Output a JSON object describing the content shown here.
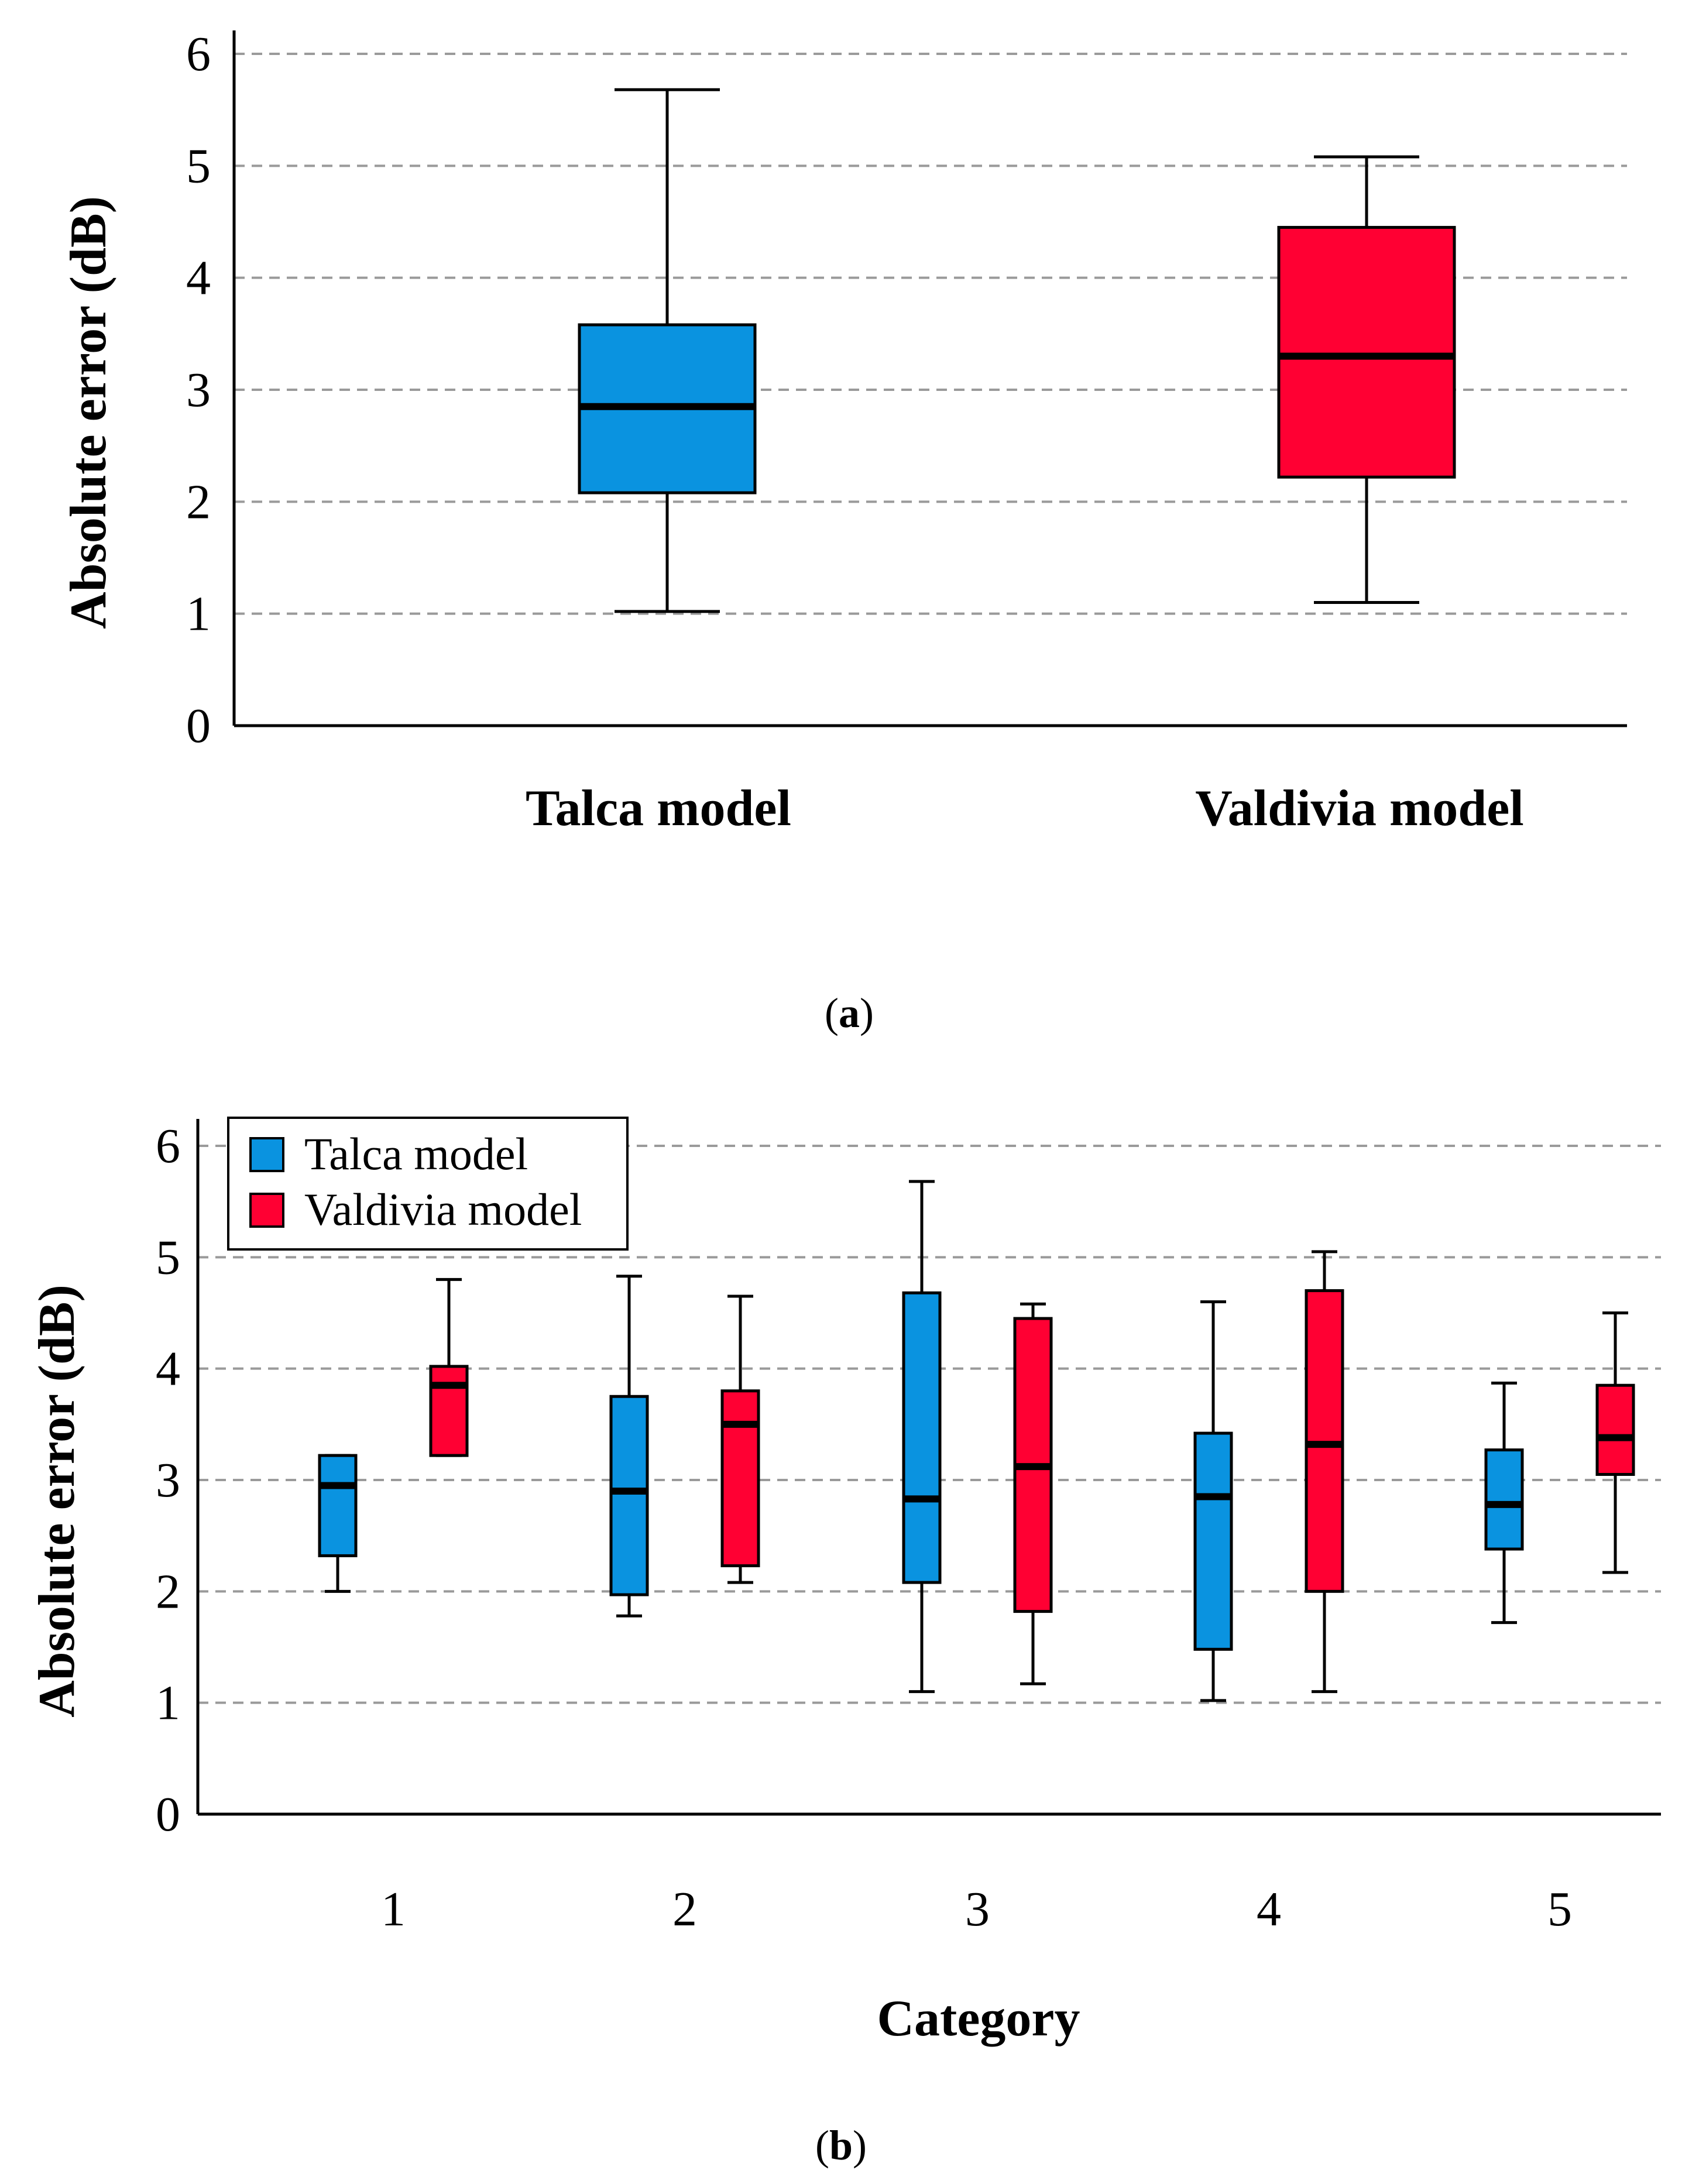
{
  "chart_data": [
    {
      "type": "box",
      "panel": "a",
      "caption": "(a)",
      "caption_letter": "a",
      "ylabel": "Absolute error (dB)",
      "xlabel": "",
      "ylim": [
        0,
        6
      ],
      "yticks": [
        0,
        1,
        2,
        3,
        4,
        5,
        6
      ],
      "grid": true,
      "categories": [
        "Talca model",
        "Valdivia model"
      ],
      "series": [
        {
          "name": "Talca model",
          "color": "#0A93E0",
          "boxes": [
            {
              "category": "Talca model",
              "min": 1.02,
              "q1": 2.08,
              "median": 2.85,
              "q3": 3.58,
              "max": 5.68
            }
          ]
        },
        {
          "name": "Valdivia model",
          "color": "#FF0033",
          "boxes": [
            {
              "category": "Valdivia model",
              "min": 1.1,
              "q1": 2.22,
              "median": 3.3,
              "q3": 4.45,
              "max": 5.08
            }
          ]
        }
      ]
    },
    {
      "type": "box",
      "panel": "b",
      "caption": "(b)",
      "caption_letter": "b",
      "ylabel": "Absolute error (dB)",
      "xlabel": "Category",
      "ylim": [
        0,
        6
      ],
      "yticks": [
        0,
        1,
        2,
        3,
        4,
        5,
        6
      ],
      "grid": true,
      "legend_position": "top-left",
      "categories": [
        "1",
        "2",
        "3",
        "4",
        "5"
      ],
      "series": [
        {
          "name": "Talca model",
          "color": "#0A93E0",
          "boxes": [
            {
              "category": "1",
              "min": 2.0,
              "q1": 2.32,
              "median": 2.95,
              "q3": 3.22,
              "max": 3.22
            },
            {
              "category": "2",
              "min": 1.78,
              "q1": 1.97,
              "median": 2.9,
              "q3": 3.75,
              "max": 4.83
            },
            {
              "category": "3",
              "min": 1.1,
              "q1": 2.08,
              "median": 2.83,
              "q3": 4.68,
              "max": 5.68
            },
            {
              "category": "4",
              "min": 1.02,
              "q1": 1.48,
              "median": 2.85,
              "q3": 3.42,
              "max": 4.6
            },
            {
              "category": "5",
              "min": 1.72,
              "q1": 2.38,
              "median": 2.78,
              "q3": 3.27,
              "max": 3.87
            }
          ]
        },
        {
          "name": "Valdivia model",
          "color": "#FF0033",
          "boxes": [
            {
              "category": "1",
              "min": 3.22,
              "q1": 3.22,
              "median": 3.85,
              "q3": 4.02,
              "max": 4.8
            },
            {
              "category": "2",
              "min": 2.08,
              "q1": 2.23,
              "median": 3.5,
              "q3": 3.8,
              "max": 4.65
            },
            {
              "category": "3",
              "min": 1.17,
              "q1": 1.82,
              "median": 3.12,
              "q3": 4.45,
              "max": 4.58
            },
            {
              "category": "4",
              "min": 1.1,
              "q1": 2.0,
              "median": 3.32,
              "q3": 4.7,
              "max": 5.05
            },
            {
              "category": "5",
              "min": 2.17,
              "q1": 3.05,
              "median": 3.38,
              "q3": 3.85,
              "max": 4.5
            }
          ]
        }
      ]
    }
  ]
}
